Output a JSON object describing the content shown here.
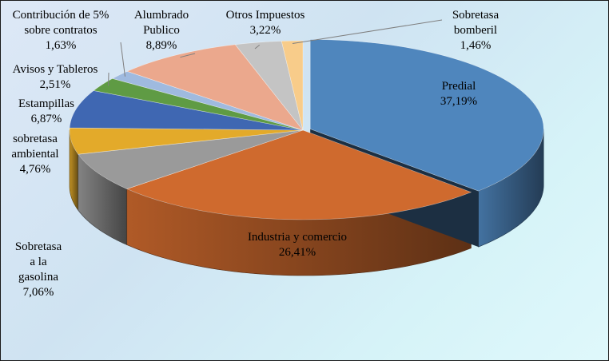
{
  "chart_data": {
    "type": "pie",
    "style": "3d-exploded-first-slice",
    "categories": [
      "Predial",
      "Industria y comercio",
      "Sobretasa a la gasolina",
      "sobretasa ambiental",
      "Estampillas",
      "Avisos y Tableros",
      "Contribución de 5% sobre contratos",
      "Alumbrado Publico",
      "Otros Impuestos",
      "Sobretasa bomberil"
    ],
    "values": [
      37.19,
      26.41,
      7.06,
      4.76,
      6.87,
      2.51,
      1.63,
      8.89,
      3.22,
      1.46
    ],
    "value_labels": [
      "37,19%",
      "26,41%",
      "7,06%",
      "4,76%",
      "6,87%",
      "2,51%",
      "1,63%",
      "8,89%",
      "3,22%",
      "1,46%"
    ],
    "label_lines": [
      [
        "Predial"
      ],
      [
        "Industria y comercio"
      ],
      [
        "Sobretasa",
        "a la",
        "gasolina"
      ],
      [
        "sobretasa",
        "ambiental"
      ],
      [
        "Estampillas"
      ],
      [
        "Avisos y Tableros"
      ],
      [
        "Contribución de 5%",
        "sobre contratos"
      ],
      [
        "Alumbrado",
        "Publico"
      ],
      [
        "Otros Impuestos"
      ],
      [
        "Sobretasa",
        "bomberil"
      ]
    ],
    "colors": [
      "#4f86bd",
      "#cf6a2e",
      "#9a9a9a",
      "#e3aa2a",
      "#3f67b2",
      "#5f9b44",
      "#9fbadf",
      "#eba88d",
      "#c4c4c4",
      "#f8cc8a"
    ],
    "legend": "none"
  }
}
